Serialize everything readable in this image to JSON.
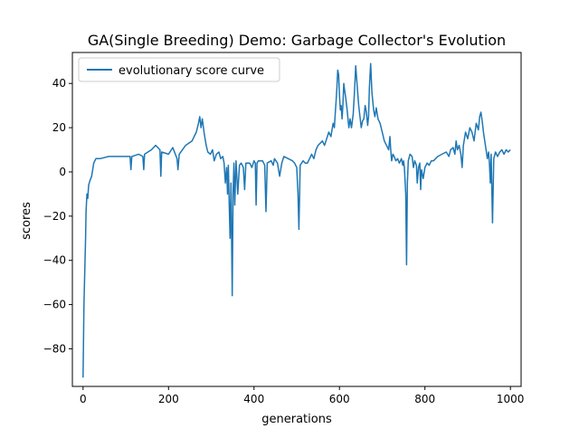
{
  "chart_data": {
    "type": "line",
    "title": "GA(Single Breeding) Demo: Garbage Collector's Evolution",
    "xlabel": "generations",
    "ylabel": "scores",
    "xlim": [
      -25,
      1025
    ],
    "ylim": [
      -97,
      54
    ],
    "xticks": [
      0,
      200,
      400,
      600,
      800,
      1000
    ],
    "yticks": [
      -80,
      -60,
      -40,
      -20,
      0,
      20,
      40
    ],
    "xtick_labels": [
      "0",
      "200",
      "400",
      "600",
      "800",
      "1000"
    ],
    "ytick_labels": [
      "−80",
      "−60",
      "−40",
      "−20",
      "0",
      "20",
      "40"
    ],
    "grid": false,
    "legend_position": "upper-left",
    "series": [
      {
        "name": "evolutionary score curve",
        "color": "#1f77b4",
        "points": [
          [
            0,
            -93
          ],
          [
            2,
            -60
          ],
          [
            4,
            -45
          ],
          [
            6,
            -30
          ],
          [
            7,
            -18
          ],
          [
            9,
            -10
          ],
          [
            11,
            -12
          ],
          [
            13,
            -6
          ],
          [
            16,
            -4
          ],
          [
            20,
            -2
          ],
          [
            25,
            4
          ],
          [
            30,
            6
          ],
          [
            40,
            6
          ],
          [
            60,
            7
          ],
          [
            80,
            7
          ],
          [
            100,
            7
          ],
          [
            110,
            7
          ],
          [
            112,
            1
          ],
          [
            114,
            7
          ],
          [
            130,
            8
          ],
          [
            140,
            7
          ],
          [
            142,
            1
          ],
          [
            144,
            8
          ],
          [
            160,
            10
          ],
          [
            170,
            12
          ],
          [
            180,
            10
          ],
          [
            182,
            -2
          ],
          [
            184,
            9
          ],
          [
            200,
            8
          ],
          [
            210,
            11
          ],
          [
            220,
            6
          ],
          [
            222,
            1
          ],
          [
            225,
            8
          ],
          [
            240,
            12
          ],
          [
            255,
            14
          ],
          [
            265,
            18
          ],
          [
            270,
            22
          ],
          [
            273,
            25
          ],
          [
            276,
            20
          ],
          [
            279,
            24
          ],
          [
            283,
            18
          ],
          [
            288,
            12
          ],
          [
            292,
            9
          ],
          [
            298,
            8
          ],
          [
            303,
            10
          ],
          [
            307,
            5
          ],
          [
            312,
            8
          ],
          [
            318,
            9
          ],
          [
            322,
            6
          ],
          [
            327,
            7
          ],
          [
            330,
            4
          ],
          [
            333,
            -5
          ],
          [
            336,
            2
          ],
          [
            338,
            -10
          ],
          [
            340,
            3
          ],
          [
            342,
            -15
          ],
          [
            344,
            -30
          ],
          [
            346,
            -5
          ],
          [
            349,
            -56
          ],
          [
            351,
            -10
          ],
          [
            353,
            4
          ],
          [
            355,
            -15
          ],
          [
            358,
            5
          ],
          [
            362,
            -10
          ],
          [
            366,
            3
          ],
          [
            370,
            4
          ],
          [
            375,
            2
          ],
          [
            378,
            -8
          ],
          [
            381,
            4
          ],
          [
            390,
            4
          ],
          [
            395,
            2
          ],
          [
            400,
            5
          ],
          [
            403,
            4
          ],
          [
            405,
            -15
          ],
          [
            407,
            4
          ],
          [
            410,
            5
          ],
          [
            420,
            5
          ],
          [
            425,
            3
          ],
          [
            428,
            -18
          ],
          [
            431,
            4
          ],
          [
            440,
            5
          ],
          [
            445,
            3
          ],
          [
            448,
            6
          ],
          [
            455,
            4
          ],
          [
            460,
            -2
          ],
          [
            465,
            4
          ],
          [
            470,
            7
          ],
          [
            480,
            6
          ],
          [
            490,
            5
          ],
          [
            495,
            4
          ],
          [
            500,
            2
          ],
          [
            503,
            -10
          ],
          [
            505,
            -26
          ],
          [
            508,
            3
          ],
          [
            515,
            5
          ],
          [
            520,
            4
          ],
          [
            525,
            4
          ],
          [
            530,
            6
          ],
          [
            535,
            8
          ],
          [
            540,
            6
          ],
          [
            545,
            10
          ],
          [
            550,
            12
          ],
          [
            555,
            13
          ],
          [
            560,
            14
          ],
          [
            565,
            12
          ],
          [
            570,
            15
          ],
          [
            575,
            18
          ],
          [
            580,
            16
          ],
          [
            585,
            22
          ],
          [
            588,
            20
          ],
          [
            590,
            26
          ],
          [
            592,
            32
          ],
          [
            594,
            38
          ],
          [
            596,
            46
          ],
          [
            598,
            44
          ],
          [
            600,
            35
          ],
          [
            602,
            28
          ],
          [
            604,
            30
          ],
          [
            606,
            24
          ],
          [
            608,
            30
          ],
          [
            610,
            40
          ],
          [
            612,
            37
          ],
          [
            615,
            33
          ],
          [
            618,
            28
          ],
          [
            622,
            20
          ],
          [
            625,
            24
          ],
          [
            628,
            20
          ],
          [
            632,
            26
          ],
          [
            635,
            36
          ],
          [
            638,
            48
          ],
          [
            641,
            40
          ],
          [
            645,
            30
          ],
          [
            648,
            25
          ],
          [
            651,
            20
          ],
          [
            654,
            23
          ],
          [
            657,
            24
          ],
          [
            660,
            30
          ],
          [
            663,
            27
          ],
          [
            666,
            21
          ],
          [
            668,
            25
          ],
          [
            670,
            38
          ],
          [
            673,
            49
          ],
          [
            676,
            36
          ],
          [
            680,
            28
          ],
          [
            683,
            25
          ],
          [
            686,
            29
          ],
          [
            690,
            24
          ],
          [
            695,
            22
          ],
          [
            700,
            18
          ],
          [
            705,
            14
          ],
          [
            710,
            12
          ],
          [
            715,
            10
          ],
          [
            718,
            16
          ],
          [
            720,
            10
          ],
          [
            722,
            5
          ],
          [
            725,
            8
          ],
          [
            728,
            7
          ],
          [
            732,
            5
          ],
          [
            736,
            6
          ],
          [
            740,
            4
          ],
          [
            745,
            6
          ],
          [
            748,
            3
          ],
          [
            750,
            5
          ],
          [
            752,
            2
          ],
          [
            755,
            -10
          ],
          [
            757,
            -42
          ],
          [
            759,
            -5
          ],
          [
            761,
            5
          ],
          [
            765,
            8
          ],
          [
            770,
            7
          ],
          [
            773,
            2
          ],
          [
            776,
            5
          ],
          [
            780,
            3
          ],
          [
            782,
            -5
          ],
          [
            785,
            2
          ],
          [
            788,
            4
          ],
          [
            790,
            -8
          ],
          [
            792,
            1
          ],
          [
            796,
            -3
          ],
          [
            800,
            2
          ],
          [
            805,
            4
          ],
          [
            810,
            3
          ],
          [
            815,
            5
          ],
          [
            820,
            5
          ],
          [
            830,
            7
          ],
          [
            840,
            8
          ],
          [
            850,
            9
          ],
          [
            856,
            7
          ],
          [
            860,
            10
          ],
          [
            866,
            11
          ],
          [
            870,
            8
          ],
          [
            873,
            14
          ],
          [
            876,
            10
          ],
          [
            880,
            12
          ],
          [
            884,
            8
          ],
          [
            887,
            2
          ],
          [
            890,
            12
          ],
          [
            895,
            18
          ],
          [
            900,
            15
          ],
          [
            905,
            20
          ],
          [
            910,
            18
          ],
          [
            915,
            14
          ],
          [
            920,
            22
          ],
          [
            925,
            19
          ],
          [
            928,
            25
          ],
          [
            931,
            27
          ],
          [
            934,
            23
          ],
          [
            937,
            18
          ],
          [
            940,
            14
          ],
          [
            943,
            10
          ],
          [
            946,
            6
          ],
          [
            949,
            9
          ],
          [
            951,
            4
          ],
          [
            953,
            -5
          ],
          [
            955,
            8
          ],
          [
            958,
            -23
          ],
          [
            961,
            6
          ],
          [
            965,
            9
          ],
          [
            970,
            7
          ],
          [
            975,
            9
          ],
          [
            980,
            10
          ],
          [
            985,
            8
          ],
          [
            990,
            10
          ],
          [
            995,
            9
          ],
          [
            1000,
            10
          ]
        ]
      }
    ]
  }
}
